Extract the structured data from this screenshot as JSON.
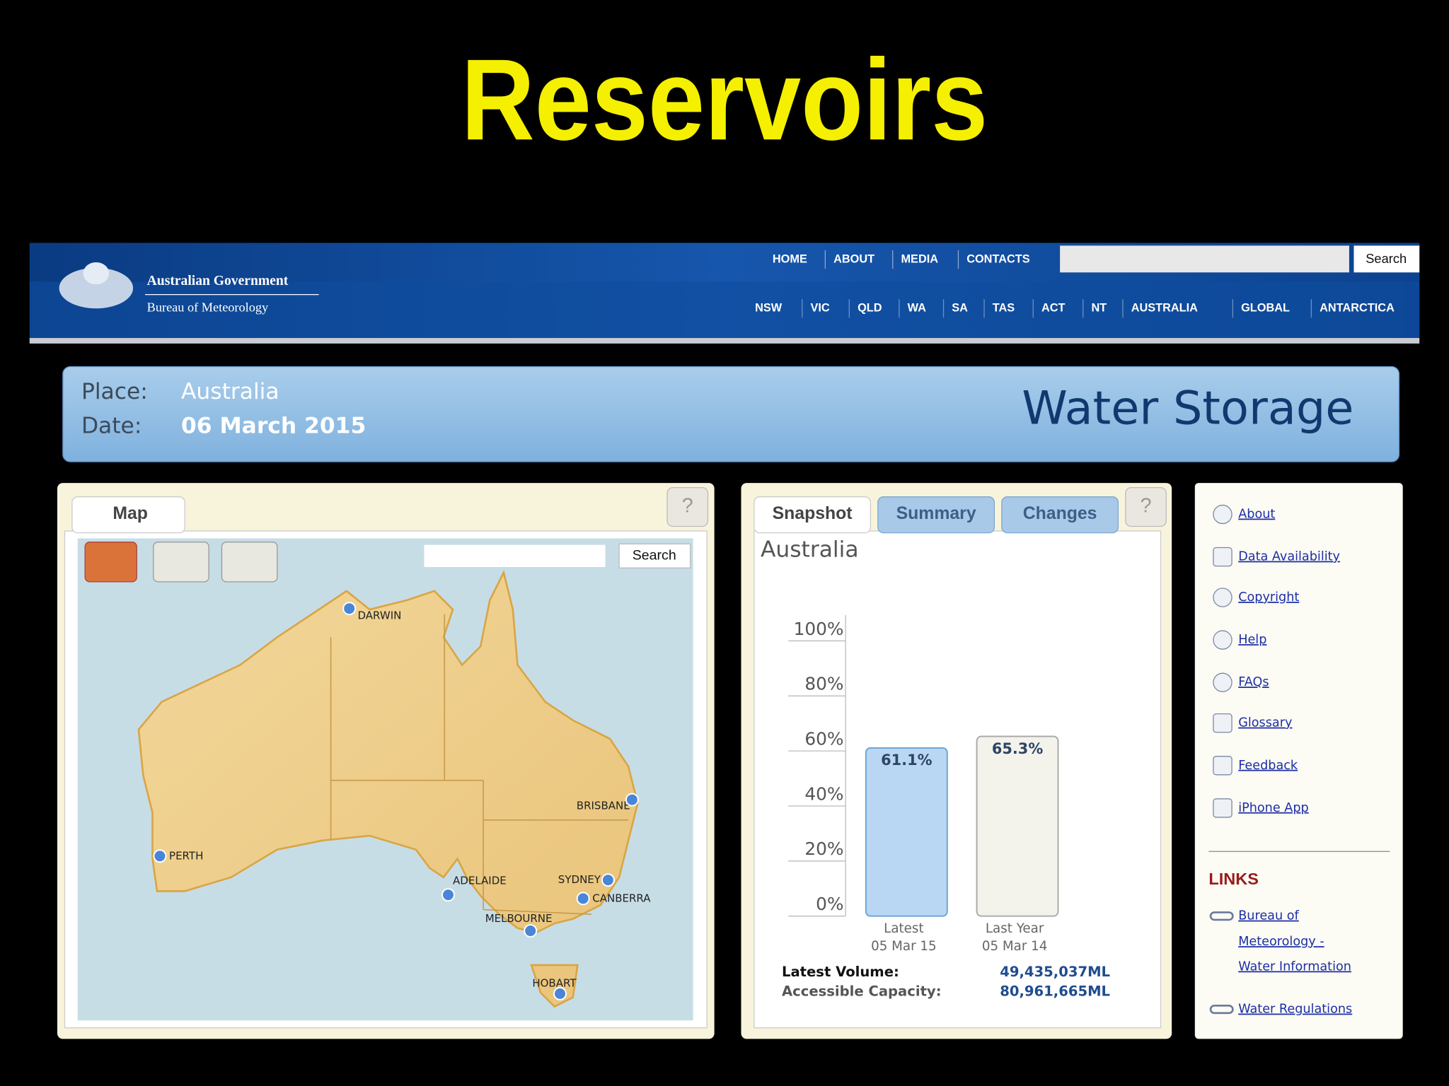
{
  "slide_title": "Reservoirs",
  "header": {
    "org": "Australian Government",
    "agency": "Bureau of Meteorology",
    "top_nav": [
      "HOME",
      "ABOUT",
      "MEDIA",
      "CONTACTS"
    ],
    "search_button": "Search",
    "region_nav": [
      "NSW",
      "VIC",
      "QLD",
      "WA",
      "SA",
      "TAS",
      "ACT",
      "NT",
      "AUSTRALIA",
      "GLOBAL",
      "ANTARCTICA"
    ]
  },
  "banner": {
    "place_label": "Place:",
    "place": "Australia",
    "date_label": "Date:",
    "date": "06 March 2015",
    "title": "Water Storage"
  },
  "map_panel": {
    "tab": "Map",
    "help": "?",
    "search_button": "Search",
    "cities": [
      "DARWIN",
      "BRISBANE",
      "PERTH",
      "ADELAIDE",
      "SYDNEY",
      "CANBERRA",
      "MELBOURNE",
      "HOBART"
    ]
  },
  "snapshot_panel": {
    "tabs": [
      "Snapshot",
      "Summary",
      "Changes"
    ],
    "help": "?",
    "region": "Australia",
    "chart_data": {
      "type": "bar",
      "categories": [
        "Latest",
        "Last Year"
      ],
      "dates": [
        "05 Mar 15",
        "05 Mar 14"
      ],
      "values": [
        61.1,
        65.3
      ],
      "value_labels": [
        "61.1%",
        "65.3%"
      ],
      "colors": [
        "#b9d7f3",
        "#f3f3ec"
      ],
      "ylim": [
        0,
        100
      ],
      "yticks": [
        {
          "value": 0,
          "label": "0%"
        },
        {
          "value": 20,
          "label": "20%"
        },
        {
          "value": 40,
          "label": "40%"
        },
        {
          "value": 60,
          "label": "60%"
        },
        {
          "value": 80,
          "label": "80%"
        },
        {
          "value": 100,
          "label": "100%"
        }
      ]
    },
    "stats": [
      {
        "label": "Latest Volume:",
        "value": "49,435,037ML"
      },
      {
        "label": "Accessible Capacity:",
        "value": "80,961,665ML"
      }
    ]
  },
  "sidebar": {
    "items": [
      "About",
      "Data Availability",
      "Copyright",
      "Help",
      "FAQs",
      "Glossary",
      "Feedback",
      "iPhone App"
    ],
    "links_heading": "LINKS",
    "links": [
      [
        "Bureau of",
        "Meteorology -",
        "Water Information"
      ],
      [
        "Water Regulations"
      ]
    ]
  }
}
